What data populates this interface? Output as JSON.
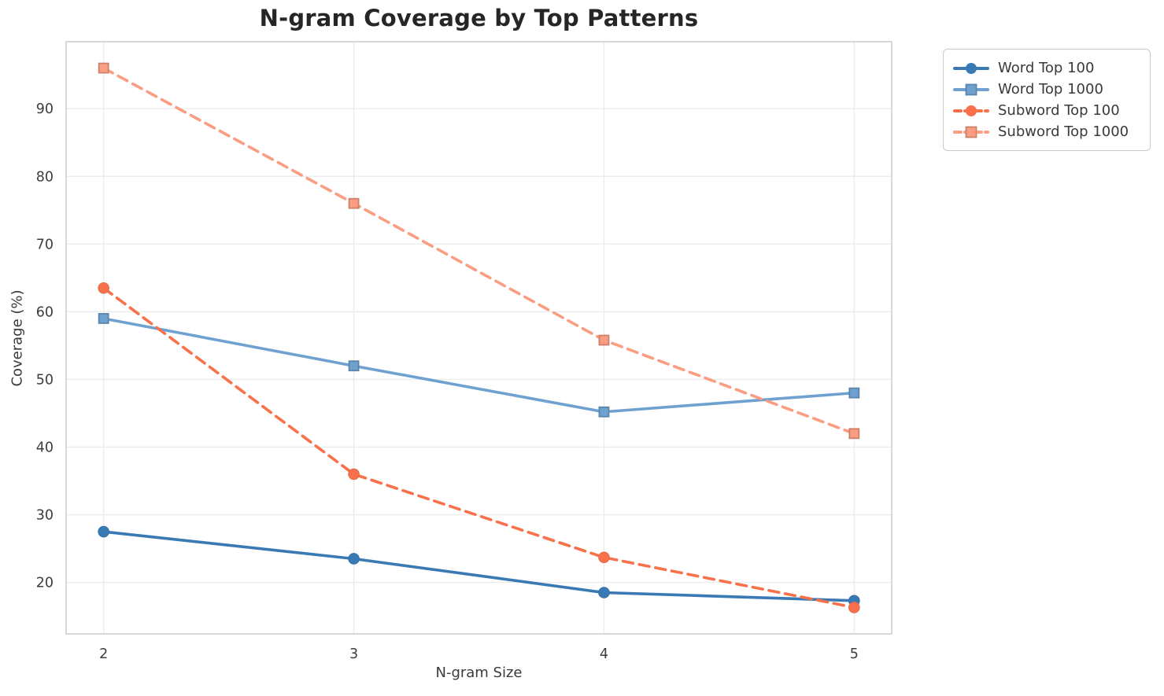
{
  "chart_data": {
    "type": "line",
    "title": "N-gram Coverage by Top Patterns",
    "xlabel": "N-gram Size",
    "ylabel": "Coverage (%)",
    "x": [
      2,
      3,
      4,
      5
    ],
    "xticks": [
      "2",
      "3",
      "4",
      "5"
    ],
    "yticks": [
      20,
      30,
      40,
      50,
      60,
      70,
      80,
      90
    ],
    "xlim": [
      1.85,
      5.15
    ],
    "ylim": [
      12.4,
      99.9
    ],
    "grid": true,
    "legend_position": "outside-right",
    "series": [
      {
        "name": "Word Top 100",
        "values": [
          27.5,
          23.5,
          18.5,
          17.3
        ],
        "color": "#397ab5",
        "dash": "solid",
        "marker": "circle"
      },
      {
        "name": "Word Top 1000",
        "values": [
          59.0,
          52.0,
          45.2,
          48.0
        ],
        "color": "#6fa1d0",
        "dash": "solid",
        "marker": "square"
      },
      {
        "name": "Subword Top 100",
        "values": [
          63.5,
          36.0,
          23.7,
          16.3
        ],
        "color": "#f8714b",
        "dash": "dashed",
        "marker": "circle"
      },
      {
        "name": "Subword Top 1000",
        "values": [
          96.0,
          76.0,
          55.8,
          42.0
        ],
        "color": "#fa9d82",
        "dash": "dashed",
        "marker": "square"
      }
    ],
    "colors": {
      "grid": "#ececec",
      "spine": "#cccccc",
      "tick_text": "#3d3d3d",
      "title_text": "#262626"
    }
  }
}
